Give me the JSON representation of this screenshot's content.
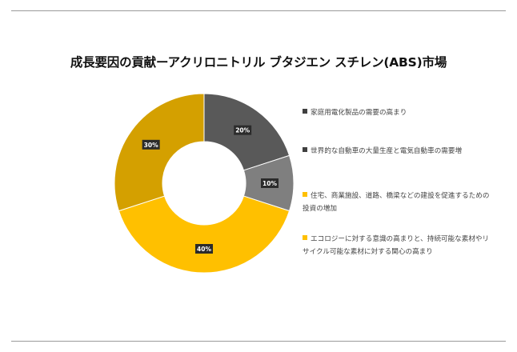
{
  "chart_data": {
    "type": "pie",
    "title": "成長要因の貢献ーアクリロニトリル ブタジエン スチレン(ABS)市場",
    "categories": [
      "家庭用電化製品の需要の高まり",
      "世界的な自動車の大量生産と電気自動車の需要増",
      "住宅、商業施設、道路、橋梁などの建設を促進するための投資の増加",
      "エコロジーに対する意識の高まりと、持続可能な素材やリサイクル可能な素材に対する関心の高まり"
    ],
    "values": [
      20,
      10,
      40,
      30
    ],
    "labels": [
      "20%",
      "10%",
      "40%",
      "30%"
    ],
    "colors": [
      "#595959",
      "#7f7f7f",
      "#ffc000",
      "#d4a000"
    ],
    "donut": true,
    "legend_position": "right"
  }
}
